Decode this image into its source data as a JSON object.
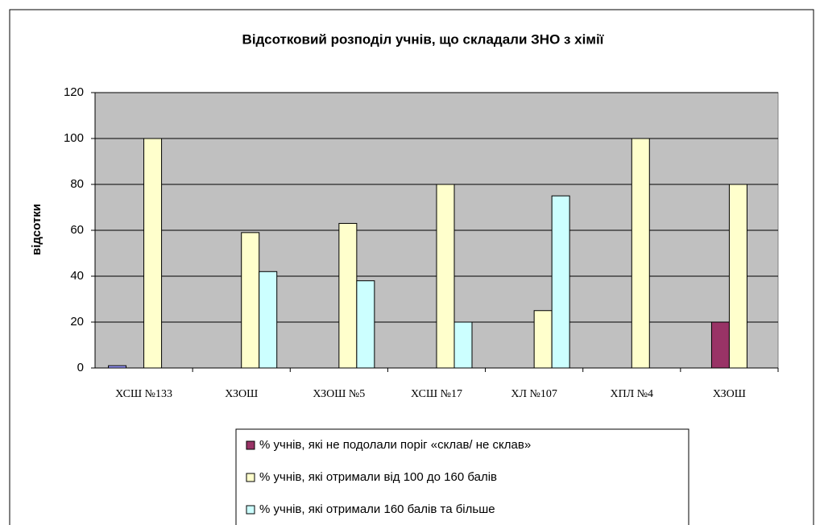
{
  "chart_data": {
    "type": "bar",
    "title": "Відсотковий розподіл учнів, що складали ЗНО з хімії",
    "y_label": "відсотки",
    "categories": [
      "ХСШ №133",
      "ХЗОШ",
      "ХЗОШ №5",
      "ХСШ №17",
      "ХЛ №107",
      "ХПЛ №4",
      "ХЗОШ"
    ],
    "series": [
      {
        "color": "#9999ff",
        "values": [
          1,
          0,
          0,
          0,
          0,
          0,
          0
        ]
      },
      {
        "name": "% учнів, які  не подолали поріг «склав/ не склав»",
        "color": "#993366",
        "values": [
          0,
          0,
          0,
          0,
          0,
          0,
          20
        ]
      },
      {
        "name": "% учнів, які отримали від 100 до 160 балів",
        "color": "#ffffcc",
        "values": [
          100,
          59,
          63,
          80,
          25,
          100,
          80
        ]
      },
      {
        "name": "% учнів, які  отримали 160 балів та більше",
        "color": "#ccffff",
        "values": [
          0,
          42,
          38,
          20,
          75,
          0,
          0
        ]
      }
    ],
    "ylim": [
      0,
      120
    ],
    "yticks": [
      0,
      20,
      40,
      60,
      80,
      100,
      120
    ],
    "grid": true,
    "legend": "bottom"
  }
}
